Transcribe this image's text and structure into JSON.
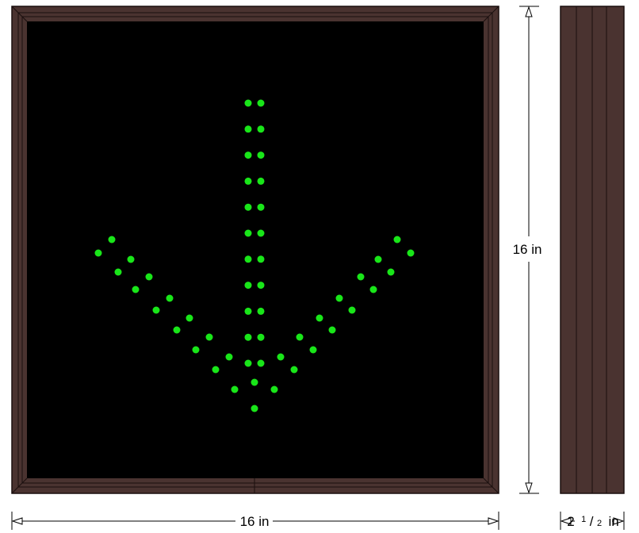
{
  "colors": {
    "frame": "#4a3330",
    "frame_edge": "#1a0f0e",
    "screen": "#000000",
    "led": "#19e619"
  },
  "dimensions": {
    "width_label": "16 in",
    "height_label": "16 in",
    "depth_label_whole": "2",
    "depth_label_num": "1",
    "depth_label_den": "2",
    "depth_label_unit": "in"
  },
  "display": {
    "symbol": "down-arrow",
    "led_color_name": "green"
  }
}
